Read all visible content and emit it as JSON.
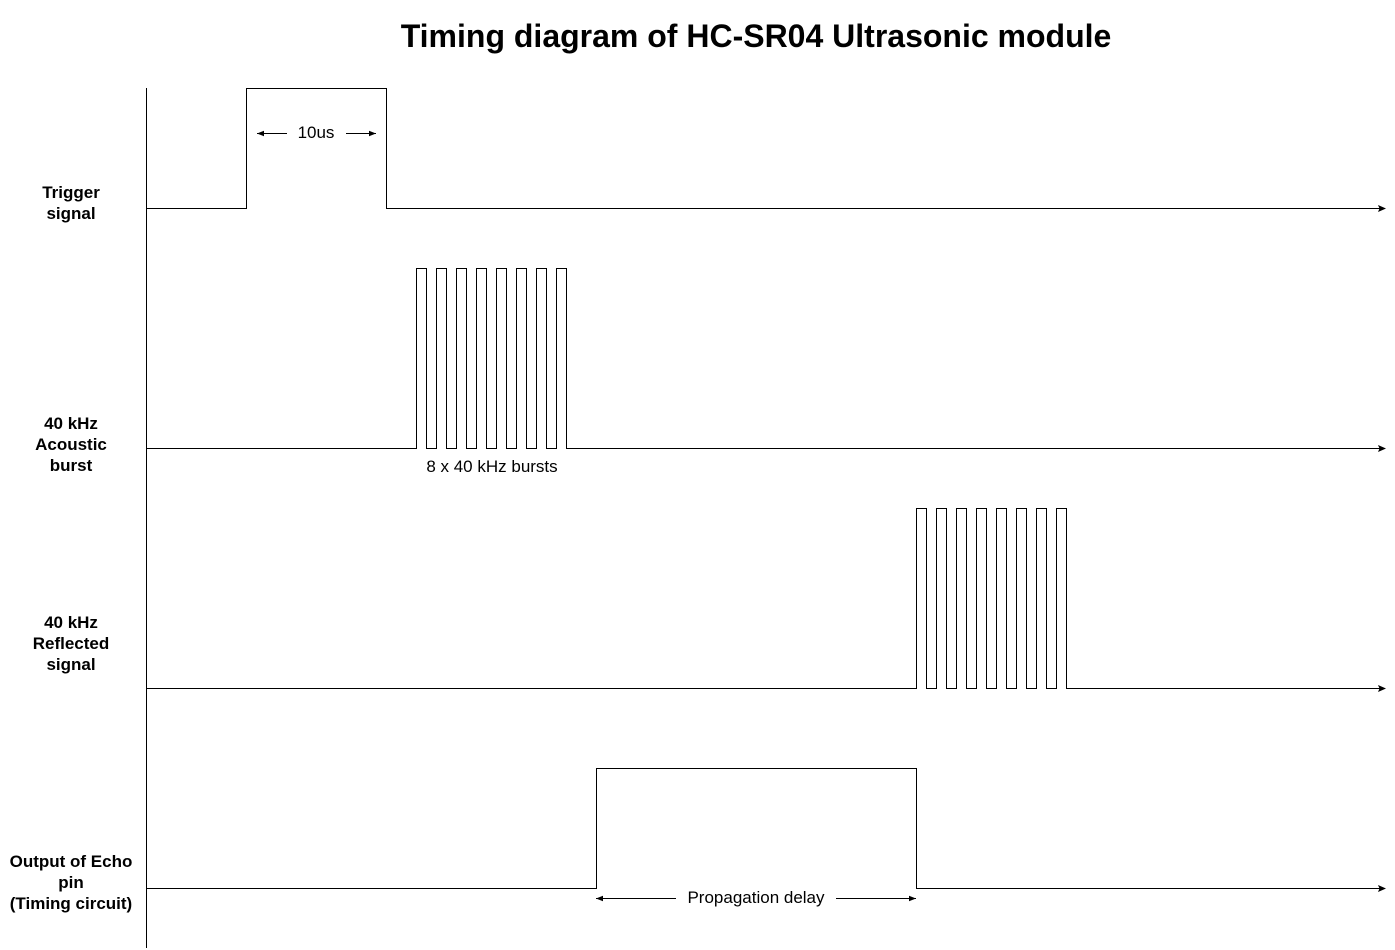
{
  "title": "Timing diagram of HC-SR04 Ultrasonic module",
  "rows": [
    {
      "id": "trigger",
      "label_lines": [
        "Trigger",
        "signal"
      ]
    },
    {
      "id": "acoustic-burst",
      "label_lines": [
        "40 kHz",
        "Acoustic",
        "burst"
      ],
      "pulse_count": 8
    },
    {
      "id": "reflected",
      "label_lines": [
        "40 kHz",
        "Reflected",
        "signal"
      ],
      "pulse_count": 8
    },
    {
      "id": "echo",
      "label_lines": [
        "Output of Echo",
        "pin",
        "(Timing circuit)"
      ]
    }
  ],
  "annotations": {
    "trigger_width": "10us",
    "burst_caption": "8 x 40 kHz bursts",
    "propagation_delay": "Propagation delay"
  },
  "colors": {
    "line": "#000000",
    "background": "#ffffff"
  }
}
